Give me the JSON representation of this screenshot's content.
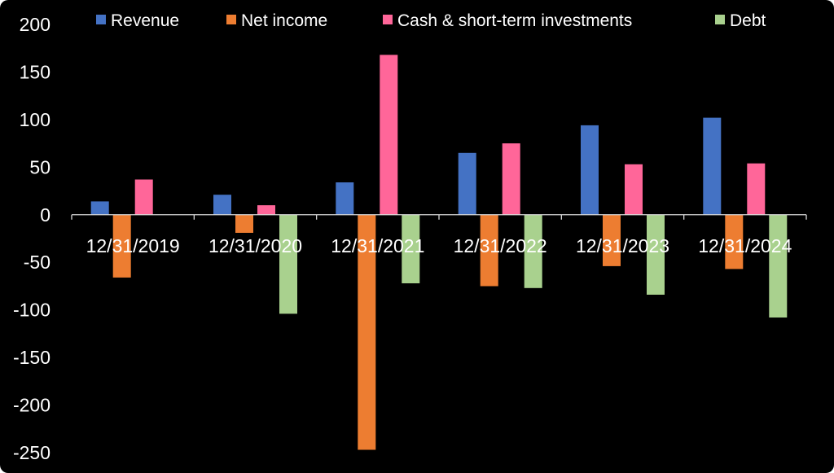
{
  "chart_data": {
    "type": "bar",
    "categories": [
      "12/31/2019",
      "12/31/2020",
      "12/31/2021",
      "12/31/2022",
      "12/31/2023",
      "12/31/2024"
    ],
    "series": [
      {
        "name": "Revenue",
        "color": "#4472C4",
        "values": [
          14,
          21,
          34,
          65,
          94,
          102
        ]
      },
      {
        "name": "Net income",
        "color": "#ED7D31",
        "values": [
          -66,
          -19,
          -247,
          -75,
          -54,
          -57
        ]
      },
      {
        "name": "Cash & short-term investments",
        "color": "#FF6699",
        "values": [
          37,
          10,
          168,
          75,
          53,
          54
        ]
      },
      {
        "name": "Debt",
        "color": "#A9D18E",
        "values": [
          0,
          -104,
          -72,
          -77,
          -84,
          -108
        ]
      }
    ],
    "ylim": [
      -250,
      200
    ],
    "yticks": [
      200,
      150,
      100,
      50,
      0,
      -50,
      -100,
      -150,
      -200,
      -250
    ],
    "legend_position": "top",
    "grid": false,
    "background": "#000000",
    "text_color": "#FFFFFF"
  }
}
